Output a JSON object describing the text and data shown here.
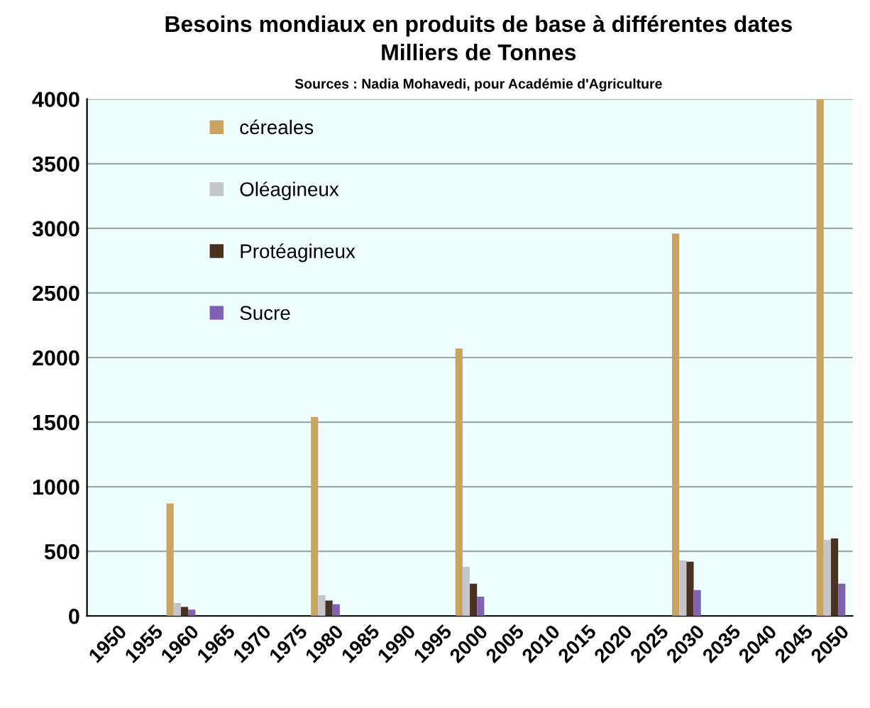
{
  "chart_data": {
    "type": "bar",
    "title": "Besoins mondiaux en produits de base à différentes dates",
    "subtitle": "Milliers de Tonnes",
    "annotations": [
      "Sources : Nadia Mohavedi, pour Académie d'Agriculture"
    ],
    "categories": [
      "1950",
      "1955",
      "1960",
      "1965",
      "1970",
      "1975",
      "1980",
      "1985",
      "1990",
      "1995",
      "2000",
      "2005",
      "2010",
      "2015",
      "2020",
      "2025",
      "2030",
      "2035",
      "2040",
      "2045",
      "2050"
    ],
    "series": [
      {
        "name": "céreales",
        "color": "#c9a463",
        "values": [
          null,
          null,
          870,
          null,
          null,
          null,
          1540,
          null,
          null,
          null,
          2070,
          null,
          null,
          null,
          null,
          null,
          2960,
          null,
          null,
          null,
          4000
        ]
      },
      {
        "name": "Oléagineux",
        "color": "#c4c6cc",
        "values": [
          null,
          null,
          100,
          null,
          null,
          null,
          160,
          null,
          null,
          null,
          380,
          null,
          null,
          null,
          null,
          null,
          430,
          null,
          null,
          null,
          590
        ]
      },
      {
        "name": "Protéagineux",
        "color": "#4a3222",
        "values": [
          null,
          null,
          70,
          null,
          null,
          null,
          120,
          null,
          null,
          null,
          250,
          null,
          null,
          null,
          null,
          null,
          420,
          null,
          null,
          null,
          600
        ]
      },
      {
        "name": "Sucre",
        "color": "#8263b3",
        "values": [
          null,
          null,
          50,
          null,
          null,
          null,
          90,
          null,
          null,
          null,
          150,
          null,
          null,
          null,
          null,
          null,
          200,
          null,
          null,
          null,
          250
        ]
      }
    ],
    "ylim": [
      0,
      4000
    ],
    "yticks": [
      0,
      500,
      1000,
      1500,
      2000,
      2500,
      3000,
      3500,
      4000
    ],
    "grid": "y",
    "legend": "top left"
  }
}
